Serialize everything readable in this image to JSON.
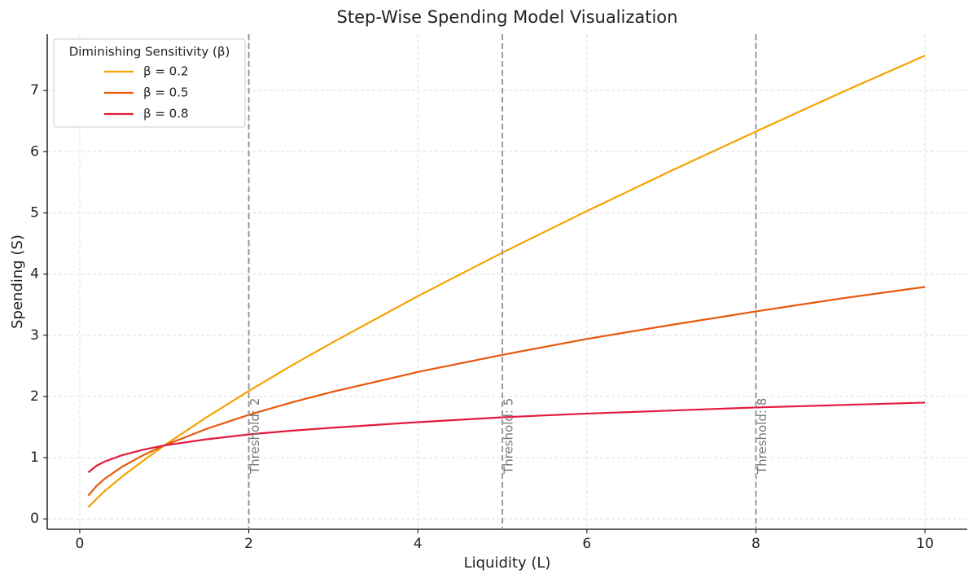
{
  "chart_data": {
    "type": "line",
    "title": "Step-Wise Spending Model Visualization",
    "x_label": "Liquidity (L)",
    "y_label": "Spending (S)",
    "legend_title": "Diminishing Sensitivity (β)",
    "legend_position": "upper left",
    "grid": true,
    "x": [
      0.1,
      0.2,
      0.3,
      0.5,
      0.75,
      1,
      1.5,
      2,
      2.5,
      3,
      4,
      5,
      6,
      7,
      8,
      9,
      10
    ],
    "series": [
      {
        "name": "β = 0.2",
        "color": "#f5a300",
        "values": [
          0.19,
          0.33,
          0.46,
          0.69,
          0.95,
          1.2,
          1.66,
          2.09,
          2.5,
          2.89,
          3.64,
          4.35,
          5.03,
          5.69,
          6.33,
          6.96,
          7.57
        ]
      },
      {
        "name": "β = 0.5",
        "color": "#e8580c",
        "values": [
          0.38,
          0.54,
          0.66,
          0.85,
          1.04,
          1.2,
          1.47,
          1.7,
          1.9,
          2.08,
          2.4,
          2.68,
          2.94,
          3.17,
          3.39,
          3.6,
          3.79
        ]
      },
      {
        "name": "β = 0.8",
        "color": "#e31a3c",
        "values": [
          0.76,
          0.87,
          0.94,
          1.04,
          1.13,
          1.2,
          1.3,
          1.38,
          1.44,
          1.49,
          1.58,
          1.66,
          1.72,
          1.77,
          1.82,
          1.86,
          1.9
        ]
      }
    ],
    "thresholds": [
      {
        "x": 2,
        "label": "Threshold: 2"
      },
      {
        "x": 5,
        "label": "Threshold: 5"
      },
      {
        "x": 8,
        "label": "Threshold: 8"
      }
    ],
    "threshold_color": "#999999",
    "xlim": [
      -0.385,
      10.5
    ],
    "ylim": [
      -0.17,
      7.92
    ],
    "xticks": [
      0,
      2,
      4,
      6,
      8,
      10
    ],
    "yticks": [
      0,
      1,
      2,
      3,
      4,
      5,
      6,
      7
    ]
  }
}
